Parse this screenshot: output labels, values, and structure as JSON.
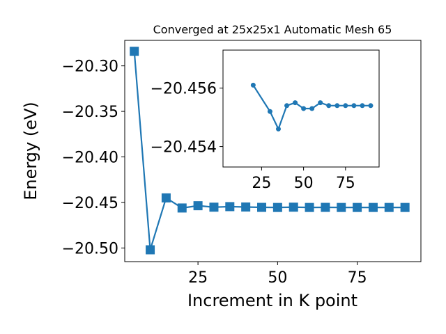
{
  "chart_data": [
    {
      "type": "line",
      "title": "Converged at 25x25x1 Automatic Mesh 65",
      "xlabel": "Increment in K point",
      "ylabel": "Energy (eV)",
      "xlim": [
        2,
        95
      ],
      "ylim": [
        -20.515,
        -20.272
      ],
      "xticks": [
        25,
        50,
        75
      ],
      "yticks": [
        -20.3,
        -20.35,
        -20.4,
        -20.45,
        -20.5
      ],
      "xtick_labels": [
        "25",
        "50",
        "75"
      ],
      "ytick_labels": [
        "−20.30",
        "−20.35",
        "−20.40",
        "−20.45",
        "−20.50"
      ],
      "marker": "square",
      "color": "#1f77b4",
      "grid": false,
      "series": [
        {
          "x": [
            5,
            10,
            15,
            20,
            25,
            30,
            35,
            40,
            45,
            50,
            55,
            60,
            65,
            70,
            75,
            80,
            85,
            90
          ],
          "y": [
            -20.284,
            -20.502,
            -20.445,
            -20.4561,
            -20.4536,
            -20.4552,
            -20.4546,
            -20.455,
            -20.4554,
            -20.4555,
            -20.4552,
            -20.4555,
            -20.4554,
            -20.4555,
            -20.4555,
            -20.4555,
            -20.4555,
            -20.4555
          ]
        }
      ]
    },
    {
      "type": "line",
      "title": "",
      "xlabel": "",
      "ylabel": "",
      "xlim": [
        2,
        95
      ],
      "ylim": [
        -20.4533,
        -20.4573
      ],
      "xticks": [
        25,
        50,
        75
      ],
      "yticks": [
        -20.456,
        -20.454
      ],
      "xtick_labels": [
        "25",
        "50",
        "75"
      ],
      "ytick_labels": [
        "−20.456",
        "−20.454"
      ],
      "marker": "circle",
      "color": "#1f77b4",
      "grid": false,
      "series": [
        {
          "x": [
            20,
            30,
            35,
            40,
            45,
            50,
            55,
            60,
            65,
            70,
            75,
            80,
            85,
            90
          ],
          "y": [
            -20.4561,
            -20.4552,
            -20.4546,
            -20.4554,
            -20.4555,
            -20.4553,
            -20.4553,
            -20.4555,
            -20.4554,
            -20.4554,
            -20.4554,
            -20.4554,
            -20.4554,
            -20.4554
          ]
        }
      ]
    }
  ]
}
